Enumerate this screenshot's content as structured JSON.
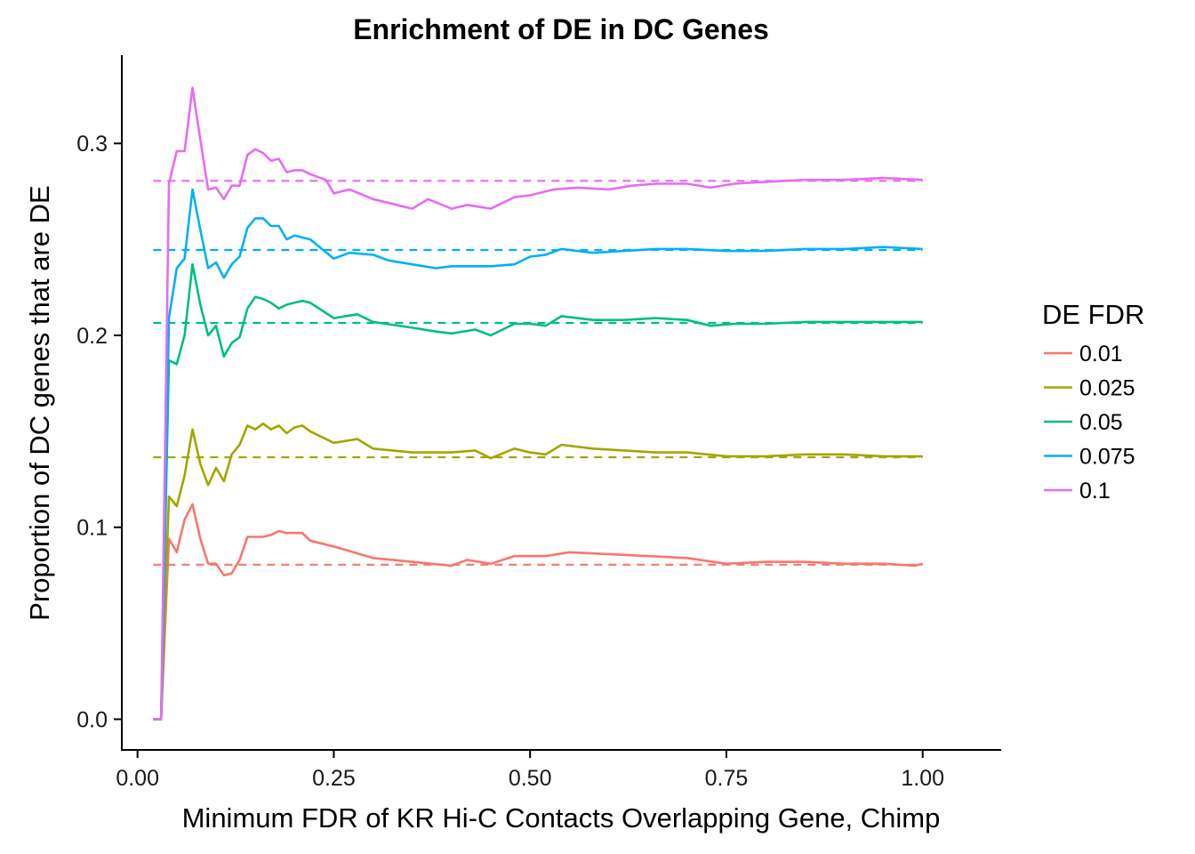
{
  "chart_data": {
    "type": "line",
    "title": "Enrichment of DE in DC Genes",
    "xlabel": "Minimum FDR of KR Hi-C Contacts Overlapping Gene, Chimp",
    "ylabel": "Proportion of DC genes that are DE",
    "xlim": [
      -0.02,
      1.1
    ],
    "ylim": [
      -0.016,
      0.346
    ],
    "xticks": [
      0.0,
      0.25,
      0.5,
      0.75,
      1.0
    ],
    "xtick_labels": [
      "0.00",
      "0.25",
      "0.50",
      "0.75",
      "1.00"
    ],
    "yticks": [
      0.0,
      0.1,
      0.2,
      0.3
    ],
    "ytick_labels": [
      "0.0",
      "0.1",
      "0.2",
      "0.3"
    ],
    "grid": false,
    "legend": {
      "title": "DE FDR",
      "position": "right"
    },
    "reference_lines_style": "dashed horizontal line per series at overall proportion",
    "series": [
      {
        "name": "0.01",
        "color": "#F8766D",
        "reference": 0.0805,
        "points": [
          [
            0.02,
            0.0
          ],
          [
            0.03,
            0.0
          ],
          [
            0.04,
            0.094
          ],
          [
            0.05,
            0.087
          ],
          [
            0.06,
            0.104
          ],
          [
            0.07,
            0.112
          ],
          [
            0.08,
            0.094
          ],
          [
            0.09,
            0.081
          ],
          [
            0.1,
            0.081
          ],
          [
            0.11,
            0.075
          ],
          [
            0.12,
            0.076
          ],
          [
            0.13,
            0.083
          ],
          [
            0.14,
            0.095
          ],
          [
            0.15,
            0.095
          ],
          [
            0.16,
            0.095
          ],
          [
            0.17,
            0.096
          ],
          [
            0.18,
            0.098
          ],
          [
            0.19,
            0.097
          ],
          [
            0.2,
            0.097
          ],
          [
            0.21,
            0.097
          ],
          [
            0.22,
            0.093
          ],
          [
            0.25,
            0.09
          ],
          [
            0.3,
            0.084
          ],
          [
            0.35,
            0.082
          ],
          [
            0.4,
            0.08
          ],
          [
            0.42,
            0.083
          ],
          [
            0.45,
            0.081
          ],
          [
            0.48,
            0.085
          ],
          [
            0.5,
            0.085
          ],
          [
            0.52,
            0.085
          ],
          [
            0.55,
            0.087
          ],
          [
            0.6,
            0.086
          ],
          [
            0.65,
            0.085
          ],
          [
            0.7,
            0.084
          ],
          [
            0.75,
            0.081
          ],
          [
            0.8,
            0.082
          ],
          [
            0.85,
            0.082
          ],
          [
            0.9,
            0.081
          ],
          [
            0.95,
            0.081
          ],
          [
            0.99,
            0.08
          ],
          [
            1.0,
            0.081
          ]
        ]
      },
      {
        "name": "0.025",
        "color": "#A3A500",
        "reference": 0.1365,
        "points": [
          [
            0.02,
            0.0
          ],
          [
            0.03,
            0.0
          ],
          [
            0.04,
            0.116
          ],
          [
            0.05,
            0.111
          ],
          [
            0.06,
            0.127
          ],
          [
            0.07,
            0.151
          ],
          [
            0.08,
            0.133
          ],
          [
            0.09,
            0.122
          ],
          [
            0.1,
            0.131
          ],
          [
            0.11,
            0.124
          ],
          [
            0.12,
            0.138
          ],
          [
            0.13,
            0.143
          ],
          [
            0.14,
            0.153
          ],
          [
            0.15,
            0.151
          ],
          [
            0.16,
            0.154
          ],
          [
            0.17,
            0.151
          ],
          [
            0.18,
            0.153
          ],
          [
            0.19,
            0.149
          ],
          [
            0.2,
            0.152
          ],
          [
            0.21,
            0.153
          ],
          [
            0.22,
            0.15
          ],
          [
            0.25,
            0.144
          ],
          [
            0.28,
            0.146
          ],
          [
            0.3,
            0.141
          ],
          [
            0.35,
            0.139
          ],
          [
            0.4,
            0.139
          ],
          [
            0.43,
            0.14
          ],
          [
            0.45,
            0.136
          ],
          [
            0.48,
            0.141
          ],
          [
            0.5,
            0.139
          ],
          [
            0.52,
            0.138
          ],
          [
            0.54,
            0.143
          ],
          [
            0.58,
            0.141
          ],
          [
            0.62,
            0.14
          ],
          [
            0.66,
            0.139
          ],
          [
            0.7,
            0.139
          ],
          [
            0.75,
            0.137
          ],
          [
            0.8,
            0.137
          ],
          [
            0.85,
            0.138
          ],
          [
            0.9,
            0.138
          ],
          [
            0.95,
            0.137
          ],
          [
            1.0,
            0.137
          ]
        ]
      },
      {
        "name": "0.05",
        "color": "#00BF7D",
        "reference": 0.2065,
        "points": [
          [
            0.02,
            0.0
          ],
          [
            0.03,
            0.0
          ],
          [
            0.04,
            0.187
          ],
          [
            0.05,
            0.185
          ],
          [
            0.06,
            0.2
          ],
          [
            0.07,
            0.237
          ],
          [
            0.08,
            0.216
          ],
          [
            0.09,
            0.2
          ],
          [
            0.1,
            0.205
          ],
          [
            0.11,
            0.189
          ],
          [
            0.12,
            0.196
          ],
          [
            0.13,
            0.199
          ],
          [
            0.14,
            0.214
          ],
          [
            0.15,
            0.22
          ],
          [
            0.16,
            0.219
          ],
          [
            0.17,
            0.217
          ],
          [
            0.18,
            0.214
          ],
          [
            0.19,
            0.216
          ],
          [
            0.2,
            0.217
          ],
          [
            0.21,
            0.218
          ],
          [
            0.22,
            0.217
          ],
          [
            0.25,
            0.209
          ],
          [
            0.28,
            0.211
          ],
          [
            0.3,
            0.207
          ],
          [
            0.35,
            0.204
          ],
          [
            0.38,
            0.202
          ],
          [
            0.4,
            0.201
          ],
          [
            0.43,
            0.203
          ],
          [
            0.45,
            0.2
          ],
          [
            0.48,
            0.206
          ],
          [
            0.5,
            0.206
          ],
          [
            0.52,
            0.205
          ],
          [
            0.54,
            0.21
          ],
          [
            0.58,
            0.208
          ],
          [
            0.62,
            0.208
          ],
          [
            0.66,
            0.209
          ],
          [
            0.7,
            0.208
          ],
          [
            0.73,
            0.205
          ],
          [
            0.76,
            0.206
          ],
          [
            0.8,
            0.206
          ],
          [
            0.85,
            0.207
          ],
          [
            0.9,
            0.207
          ],
          [
            0.95,
            0.207
          ],
          [
            1.0,
            0.207
          ]
        ]
      },
      {
        "name": "0.075",
        "color": "#00B0F6",
        "reference": 0.2445,
        "points": [
          [
            0.02,
            0.0
          ],
          [
            0.03,
            0.0
          ],
          [
            0.04,
            0.209
          ],
          [
            0.05,
            0.235
          ],
          [
            0.06,
            0.24
          ],
          [
            0.07,
            0.276
          ],
          [
            0.08,
            0.255
          ],
          [
            0.09,
            0.235
          ],
          [
            0.1,
            0.238
          ],
          [
            0.11,
            0.23
          ],
          [
            0.12,
            0.237
          ],
          [
            0.13,
            0.241
          ],
          [
            0.14,
            0.256
          ],
          [
            0.15,
            0.261
          ],
          [
            0.16,
            0.261
          ],
          [
            0.17,
            0.257
          ],
          [
            0.18,
            0.257
          ],
          [
            0.19,
            0.25
          ],
          [
            0.2,
            0.252
          ],
          [
            0.21,
            0.251
          ],
          [
            0.22,
            0.25
          ],
          [
            0.25,
            0.24
          ],
          [
            0.27,
            0.243
          ],
          [
            0.3,
            0.242
          ],
          [
            0.32,
            0.239
          ],
          [
            0.35,
            0.237
          ],
          [
            0.38,
            0.235
          ],
          [
            0.4,
            0.236
          ],
          [
            0.45,
            0.236
          ],
          [
            0.48,
            0.237
          ],
          [
            0.5,
            0.241
          ],
          [
            0.52,
            0.242
          ],
          [
            0.54,
            0.245
          ],
          [
            0.58,
            0.243
          ],
          [
            0.62,
            0.244
          ],
          [
            0.66,
            0.245
          ],
          [
            0.7,
            0.245
          ],
          [
            0.75,
            0.244
          ],
          [
            0.8,
            0.244
          ],
          [
            0.85,
            0.245
          ],
          [
            0.9,
            0.245
          ],
          [
            0.95,
            0.246
          ],
          [
            1.0,
            0.245
          ]
        ]
      },
      {
        "name": "0.1",
        "color": "#E76BF3",
        "reference": 0.2805,
        "points": [
          [
            0.02,
            0.0
          ],
          [
            0.03,
            0.0
          ],
          [
            0.04,
            0.279
          ],
          [
            0.05,
            0.296
          ],
          [
            0.06,
            0.296
          ],
          [
            0.07,
            0.329
          ],
          [
            0.08,
            0.302
          ],
          [
            0.09,
            0.276
          ],
          [
            0.1,
            0.277
          ],
          [
            0.11,
            0.271
          ],
          [
            0.12,
            0.278
          ],
          [
            0.13,
            0.278
          ],
          [
            0.14,
            0.294
          ],
          [
            0.15,
            0.297
          ],
          [
            0.16,
            0.295
          ],
          [
            0.17,
            0.291
          ],
          [
            0.18,
            0.292
          ],
          [
            0.19,
            0.285
          ],
          [
            0.2,
            0.286
          ],
          [
            0.21,
            0.286
          ],
          [
            0.22,
            0.284
          ],
          [
            0.24,
            0.281
          ],
          [
            0.25,
            0.274
          ],
          [
            0.27,
            0.276
          ],
          [
            0.3,
            0.271
          ],
          [
            0.33,
            0.268
          ],
          [
            0.35,
            0.266
          ],
          [
            0.37,
            0.271
          ],
          [
            0.4,
            0.266
          ],
          [
            0.42,
            0.268
          ],
          [
            0.45,
            0.266
          ],
          [
            0.48,
            0.272
          ],
          [
            0.5,
            0.273
          ],
          [
            0.53,
            0.276
          ],
          [
            0.56,
            0.277
          ],
          [
            0.6,
            0.276
          ],
          [
            0.63,
            0.278
          ],
          [
            0.66,
            0.279
          ],
          [
            0.7,
            0.279
          ],
          [
            0.73,
            0.277
          ],
          [
            0.76,
            0.279
          ],
          [
            0.8,
            0.28
          ],
          [
            0.85,
            0.281
          ],
          [
            0.9,
            0.281
          ],
          [
            0.95,
            0.282
          ],
          [
            1.0,
            0.281
          ]
        ]
      }
    ]
  }
}
